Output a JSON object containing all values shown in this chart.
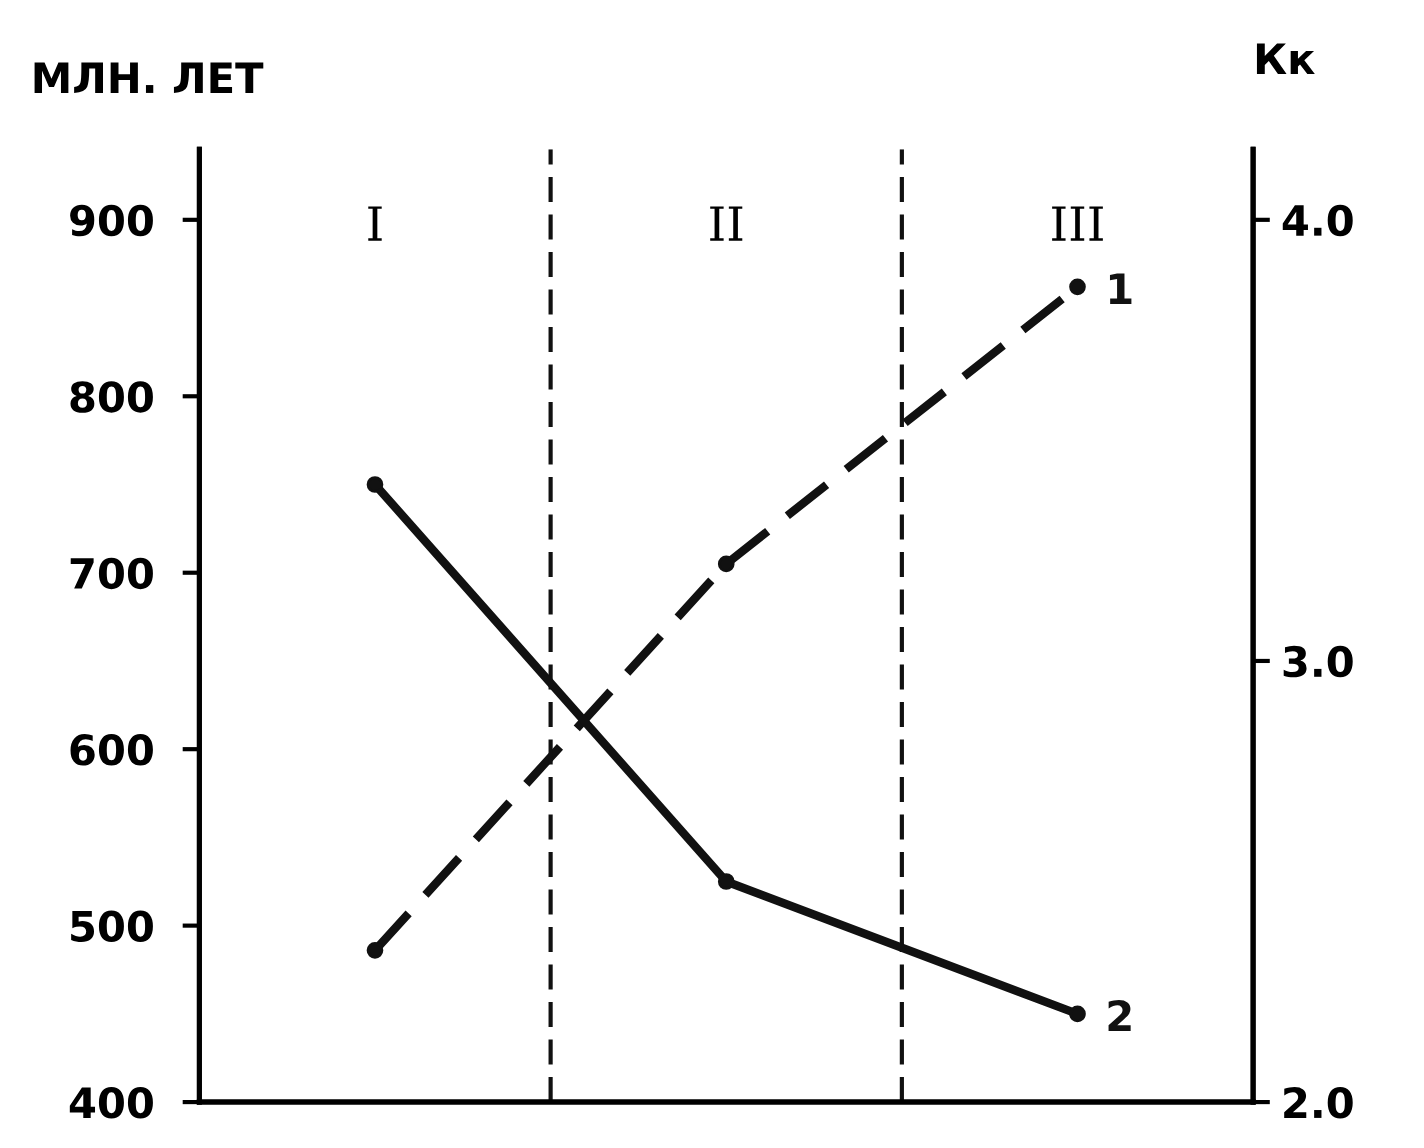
{
  "chart_data": {
    "type": "line",
    "ylabel": "МЛН. ЛЕТ",
    "y2label": "Кк",
    "categories": [
      "I",
      "II",
      "III"
    ],
    "ylim": [
      400,
      940
    ],
    "yticks": [
      400,
      500,
      600,
      700,
      800,
      900
    ],
    "y2lim": [
      2.0,
      4.16
    ],
    "y2ticks": [
      {
        "value": 2,
        "label": "2.0"
      },
      {
        "value": 3,
        "label": "3.0"
      },
      {
        "value": 4,
        "label": "4.0"
      }
    ],
    "grid": false,
    "legend": "right",
    "marker": "circle",
    "series": [
      {
        "name": "1",
        "color": "#111111",
        "values": [
          486,
          705,
          862
        ],
        "line_style": "dashed"
      },
      {
        "name": "2",
        "color": "#111111",
        "values": [
          3.4,
          2.5,
          2.2
        ],
        "axis": "y2",
        "line_style": "solid"
      }
    ]
  }
}
